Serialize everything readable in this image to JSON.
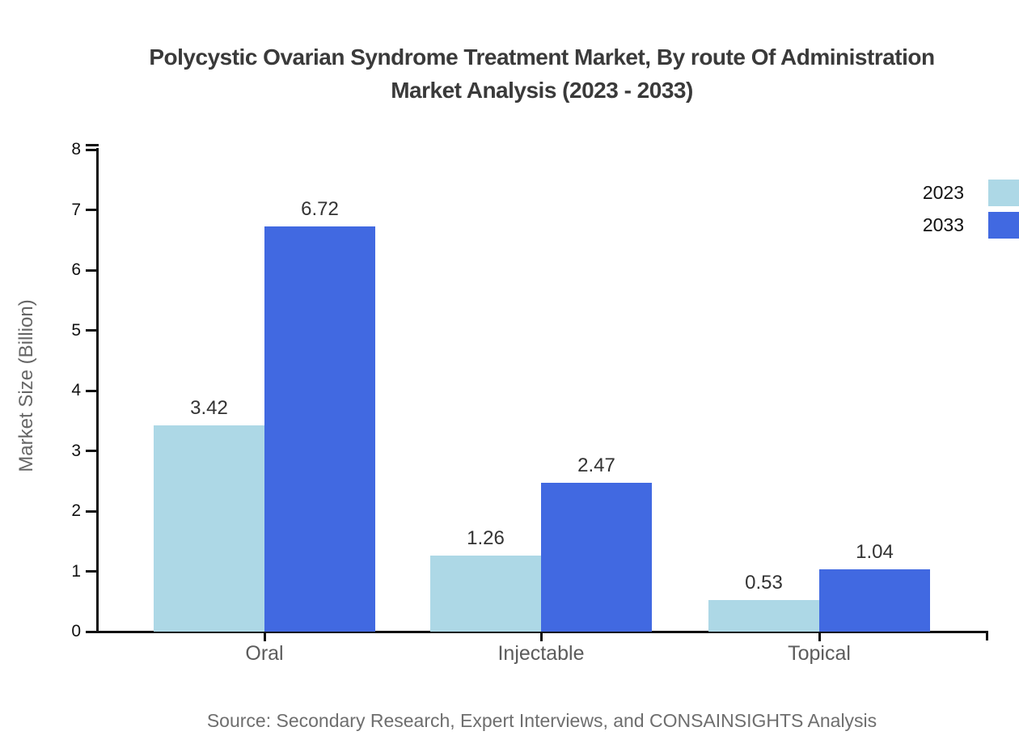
{
  "header": {
    "title_line1": "Polycystic Ovarian Syndrome Treatment Market, By route Of Administration",
    "title_line2": "Market Analysis (2023 - 2033)"
  },
  "chart_data": {
    "type": "bar",
    "title": "Polycystic Ovarian Syndrome Treatment Market, By route Of Administration Market Analysis (2023 - 2033)",
    "categories": [
      "Oral",
      "Injectable",
      "Topical"
    ],
    "series": [
      {
        "name": "2023",
        "color": "#ADD8E6",
        "values": [
          3.42,
          1.26,
          0.53
        ]
      },
      {
        "name": "2033",
        "color": "#4169E1",
        "values": [
          6.72,
          2.47,
          1.04
        ]
      }
    ],
    "xlabel": "",
    "ylabel": "Market Size (Billion)",
    "ylim": [
      0,
      8
    ],
    "yticks": [
      0,
      1,
      2,
      3,
      4,
      5,
      6,
      7,
      8
    ],
    "grid": false,
    "legend_position": "top-right-edge",
    "value_label_decimals": 2
  },
  "footer": {
    "source_note": "Source: Secondary Research, Expert Interviews, and CONSAINSIGHTS Analysis"
  },
  "colors": {
    "background": "#ffffff",
    "axis": "#111111",
    "title_text": "#3a3a3a",
    "value_label": "#333333",
    "tick_label": "#111111",
    "category_label": "#5c5c5c",
    "axis_title": "#666666",
    "source_text": "#6e6e6e",
    "series_2023": "#ADD8E6",
    "series_2033": "#4169E1"
  }
}
